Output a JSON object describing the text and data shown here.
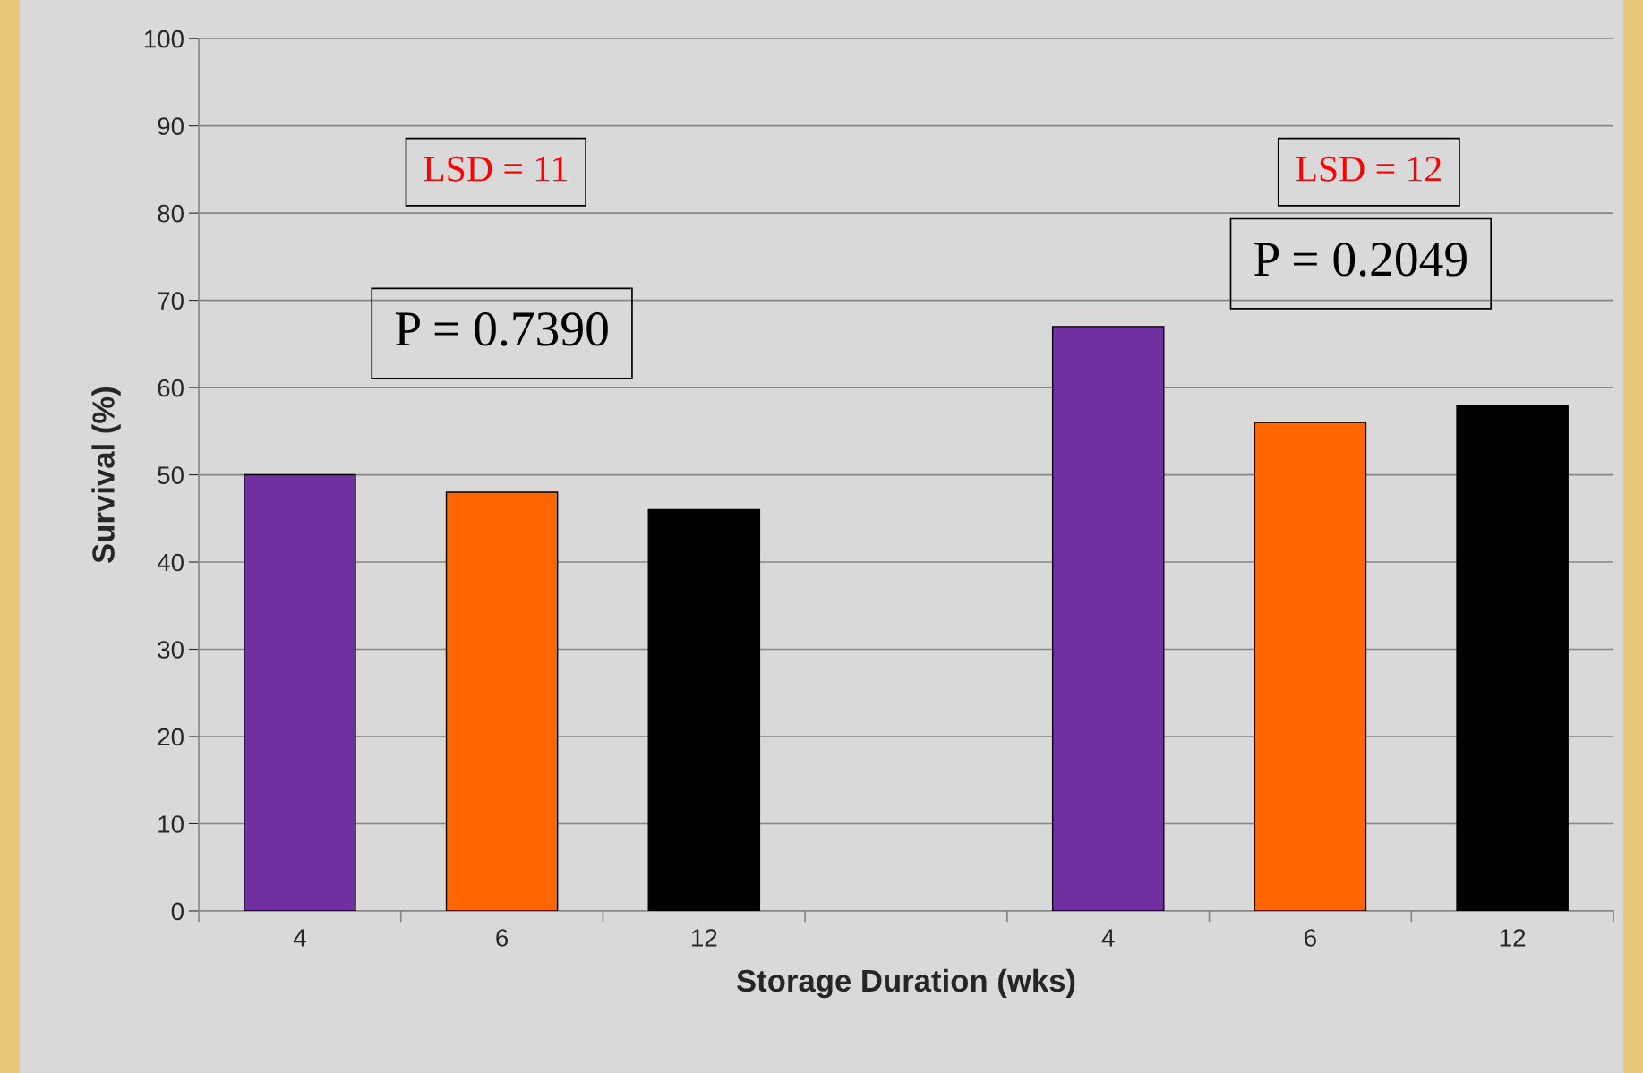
{
  "chart_data": {
    "type": "bar",
    "xlabel": "Storage Duration (wks)",
    "ylabel": "Survival (%)",
    "categories": [
      "4",
      "6",
      "12",
      null,
      "4",
      "6",
      "12"
    ],
    "values": [
      50,
      48,
      46,
      null,
      67,
      56,
      58
    ],
    "colors": [
      "#7030a0",
      "#ff6600",
      "#000000",
      "#000000",
      "#7030a0",
      "#ff6600",
      "#000000"
    ],
    "ylim": [
      0,
      100
    ],
    "yticks": [
      0,
      10,
      20,
      30,
      40,
      50,
      60,
      70,
      80,
      90,
      100
    ],
    "grid": "y",
    "annotations": [
      "LSD = 11",
      "P = 0.7390",
      "LSD = 12",
      "P = 0.2049"
    ]
  }
}
